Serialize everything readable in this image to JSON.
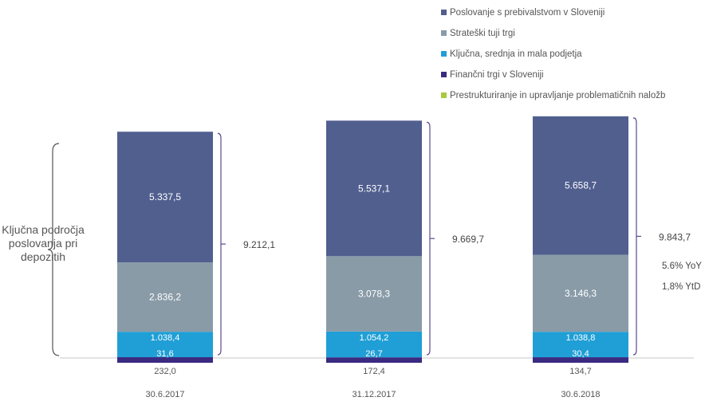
{
  "chart_data": {
    "type": "bar",
    "stacked": true,
    "categories": [
      "30.6.2017",
      "31.12.2017",
      "30.6.2018"
    ],
    "series": [
      {
        "name": "Poslovanje s prebivalstvom v Sloveniji",
        "color": "#515f8f",
        "values": [
          5337.5,
          5537.1,
          5658.7
        ],
        "labels": [
          "5.337,5",
          "5.537,1",
          "5.658,7"
        ]
      },
      {
        "name": "Strateški tuji trgi",
        "color": "#8a9ba8",
        "values": [
          2836.2,
          3078.3,
          3146.3
        ],
        "labels": [
          "2.836,2",
          "3.078,3",
          "3.146,3"
        ]
      },
      {
        "name": "Ključna, srednja in mala podjetja",
        "color": "#1f9fd6",
        "values": [
          1038.4,
          1054.2,
          1038.8
        ],
        "labels": [
          "1.038,4",
          "1.054,2",
          "1.038,8"
        ]
      },
      {
        "name": "Finančni trgi v Sloveniji",
        "color": "#3a2a80",
        "values": [
          31.6,
          26.7,
          30.4
        ],
        "labels": [
          "31,6",
          "26,7",
          "30,4"
        ]
      },
      {
        "name": "Prestrukturiranje in upravljanje problematičnih naložb",
        "color": "#a9c93e",
        "values": [
          232.0,
          172.4,
          134.7
        ],
        "labels": [
          "232,0",
          "172,4",
          "134,7"
        ]
      }
    ],
    "totals": [
      "9.212,1",
      "9.669,7",
      "9.843,7"
    ],
    "annotations": [
      "5.6% YoY",
      "1,8% YtD"
    ],
    "side_label": "Ključna področja poslovanja pri depozitih",
    "legend_position": "top-right"
  }
}
